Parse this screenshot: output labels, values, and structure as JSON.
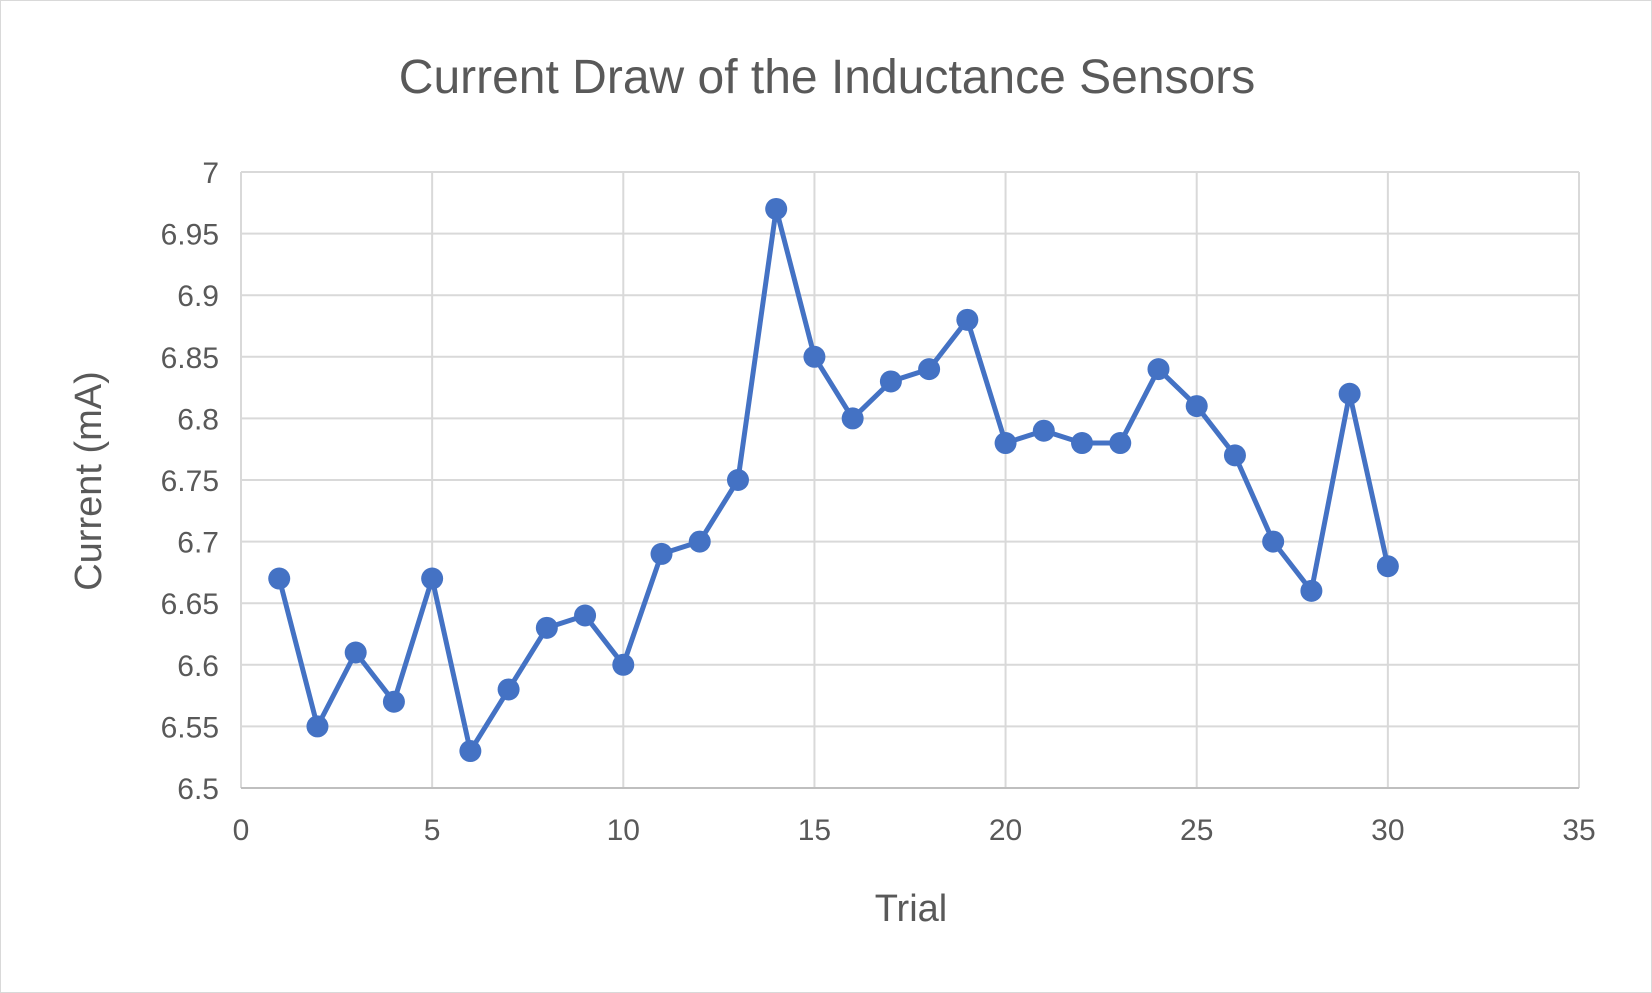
{
  "chart_data": {
    "type": "scatter",
    "title": "Current Draw of the Inductance Sensors",
    "xlabel": "Trial",
    "ylabel": "Current (mA)",
    "xlim": [
      0,
      35
    ],
    "ylim": [
      6.5,
      7
    ],
    "x_ticks": [
      "0",
      "5",
      "10",
      "15",
      "20",
      "25",
      "30",
      "35"
    ],
    "y_ticks": [
      "6.5",
      "6.55",
      "6.6",
      "6.65",
      "6.7",
      "6.75",
      "6.8",
      "6.85",
      "6.9",
      "6.95",
      "7"
    ],
    "grid": true,
    "legend": "none",
    "series": [
      {
        "color": "#4472c4",
        "markers": true,
        "lines": true,
        "x": [
          1,
          2,
          3,
          4,
          5,
          6,
          7,
          8,
          9,
          10,
          11,
          12,
          13,
          14,
          15,
          16,
          17,
          18,
          19,
          20,
          21,
          22,
          23,
          24,
          25,
          26,
          27,
          28,
          29,
          30
        ],
        "y": [
          6.67,
          6.55,
          6.61,
          6.57,
          6.67,
          6.53,
          6.58,
          6.63,
          6.64,
          6.6,
          6.69,
          6.7,
          6.75,
          6.97,
          6.85,
          6.8,
          6.83,
          6.84,
          6.88,
          6.78,
          6.79,
          6.78,
          6.78,
          6.84,
          6.81,
          6.77,
          6.7,
          6.66,
          6.82,
          6.68
        ]
      }
    ]
  }
}
